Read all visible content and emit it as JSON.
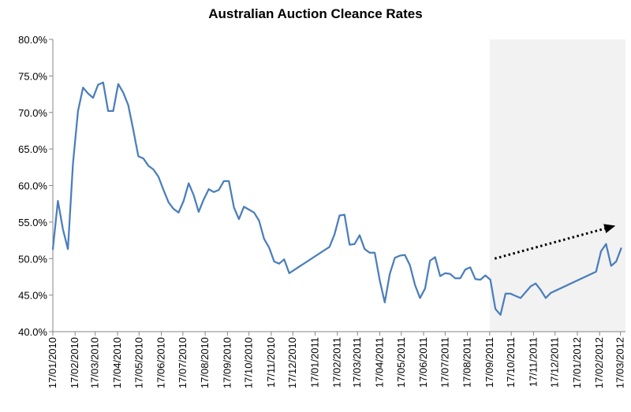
{
  "chart_data": {
    "type": "line",
    "title": "Australian Auction Cleance Rates",
    "xlabel": "",
    "ylabel": "",
    "ylim": [
      40,
      80
    ],
    "yticks": [
      "40.0%",
      "45.0%",
      "50.0%",
      "55.0%",
      "60.0%",
      "65.0%",
      "70.0%",
      "75.0%",
      "80.0%"
    ],
    "xlim": [
      "2010-01-17",
      "2012-03-24"
    ],
    "xticks": [
      "17/01/2010",
      "17/02/2010",
      "17/03/2010",
      "17/04/2010",
      "17/05/2010",
      "17/06/2010",
      "17/07/2010",
      "17/08/2010",
      "17/09/2010",
      "17/10/2010",
      "17/11/2010",
      "17/12/2010",
      "17/01/2011",
      "17/02/2011",
      "17/03/2011",
      "17/04/2011",
      "17/05/2011",
      "17/06/2011",
      "17/07/2011",
      "17/08/2011",
      "17/09/2011",
      "17/10/2011",
      "17/11/2011",
      "17/12/2011",
      "17/01/2012",
      "17/02/2012",
      "17/03/2012"
    ],
    "grid": false,
    "highlight_region": {
      "x_start": "2011-09-17",
      "x_end": "2012-03-24",
      "color": "#f2f2f2"
    },
    "trend_arrow": {
      "from": [
        "2011-09-24",
        50.0
      ],
      "to": [
        "2012-03-10",
        54.5
      ],
      "style": "dotted",
      "color": "#000000"
    },
    "series": [
      {
        "color": "#4a7ebb",
        "x": [
          "2010-01-17",
          "2010-01-24",
          "2010-01-31",
          "2010-02-07",
          "2010-02-14",
          "2010-02-21",
          "2010-02-28",
          "2010-03-07",
          "2010-03-14",
          "2010-03-21",
          "2010-03-28",
          "2010-04-04",
          "2010-04-11",
          "2010-04-18",
          "2010-04-25",
          "2010-05-02",
          "2010-05-09",
          "2010-05-16",
          "2010-05-23",
          "2010-05-30",
          "2010-06-06",
          "2010-06-13",
          "2010-06-20",
          "2010-06-27",
          "2010-07-04",
          "2010-07-11",
          "2010-07-18",
          "2010-07-25",
          "2010-08-01",
          "2010-08-08",
          "2010-08-15",
          "2010-08-22",
          "2010-08-29",
          "2010-09-05",
          "2010-09-12",
          "2010-09-19",
          "2010-09-26",
          "2010-10-03",
          "2010-10-10",
          "2010-10-17",
          "2010-10-24",
          "2010-10-31",
          "2010-11-07",
          "2010-11-14",
          "2010-11-21",
          "2010-11-28",
          "2010-12-05",
          "2010-12-12",
          "2011-02-06",
          "2011-02-13",
          "2011-02-20",
          "2011-02-27",
          "2011-03-06",
          "2011-03-13",
          "2011-03-20",
          "2011-03-27",
          "2011-04-03",
          "2011-04-10",
          "2011-04-17",
          "2011-04-24",
          "2011-05-01",
          "2011-05-08",
          "2011-05-15",
          "2011-05-22",
          "2011-05-29",
          "2011-06-05",
          "2011-06-12",
          "2011-06-19",
          "2011-06-26",
          "2011-07-03",
          "2011-07-10",
          "2011-07-17",
          "2011-07-24",
          "2011-07-31",
          "2011-08-07",
          "2011-08-14",
          "2011-08-21",
          "2011-08-28",
          "2011-09-04",
          "2011-09-11",
          "2011-09-18",
          "2011-09-25",
          "2011-10-02",
          "2011-10-09",
          "2011-10-16",
          "2011-10-23",
          "2011-10-30",
          "2011-11-06",
          "2011-11-13",
          "2011-11-20",
          "2011-11-27",
          "2011-12-04",
          "2011-12-11",
          "2012-02-12",
          "2012-02-19",
          "2012-02-26",
          "2012-03-04",
          "2012-03-11",
          "2012-03-18"
        ],
        "values": [
          51.3,
          57.9,
          54.0,
          51.3,
          63.0,
          70.2,
          73.4,
          72.6,
          72.0,
          73.8,
          74.1,
          70.2,
          70.2,
          73.9,
          72.7,
          71.0,
          67.6,
          64.0,
          63.7,
          62.7,
          62.2,
          61.2,
          59.4,
          57.7,
          56.8,
          56.3,
          57.9,
          60.3,
          58.7,
          56.4,
          58.1,
          59.5,
          59.1,
          59.4,
          60.6,
          60.6,
          57.0,
          55.4,
          57.1,
          56.7,
          56.3,
          55.2,
          52.7,
          51.5,
          49.6,
          49.3,
          49.9,
          48.0,
          51.6,
          53.3,
          55.9,
          56.0,
          51.9,
          52.0,
          53.2,
          51.3,
          50.8,
          50.8,
          47.0,
          44.0,
          47.9,
          50.1,
          50.4,
          50.5,
          49.1,
          46.4,
          44.6,
          45.9,
          49.7,
          50.2,
          47.6,
          48.0,
          47.9,
          47.3,
          47.3,
          48.5,
          48.8,
          47.2,
          47.1,
          47.7,
          47.1,
          43.1,
          42.3,
          45.2,
          45.2,
          44.9,
          44.6,
          45.4,
          46.2,
          46.6,
          45.7,
          44.6,
          45.3,
          48.2,
          51.0,
          52.0,
          49.0,
          49.6,
          51.4
        ]
      }
    ]
  }
}
